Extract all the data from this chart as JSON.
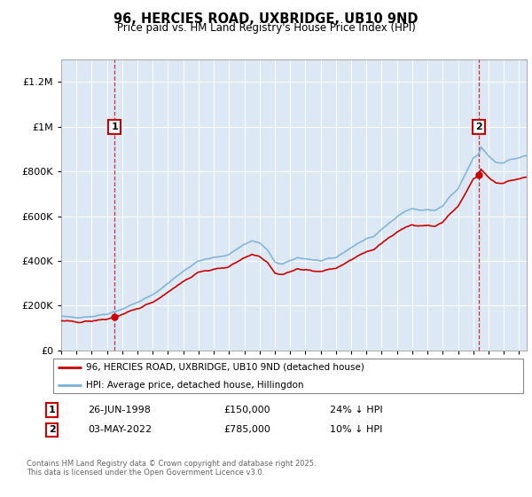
{
  "title": "96, HERCIES ROAD, UXBRIDGE, UB10 9ND",
  "subtitle": "Price paid vs. HM Land Registry's House Price Index (HPI)",
  "footer": "Contains HM Land Registry data © Crown copyright and database right 2025.\nThis data is licensed under the Open Government Licence v3.0.",
  "legend_line1": "96, HERCIES ROAD, UXBRIDGE, UB10 9ND (detached house)",
  "legend_line2": "HPI: Average price, detached house, Hillingdon",
  "annotation1_date": "26-JUN-1998",
  "annotation1_price": "£150,000",
  "annotation1_hpi": "24% ↓ HPI",
  "annotation2_date": "03-MAY-2022",
  "annotation2_price": "£785,000",
  "annotation2_hpi": "10% ↓ HPI",
  "ylim": [
    0,
    1300000
  ],
  "xlim_min": 1995.0,
  "xlim_max": 2025.5,
  "background_color": "#ffffff",
  "plot_bg": "#dce9f5",
  "grid_color": "#ffffff",
  "hpi_color": "#7bafd4",
  "price_color": "#cc0000",
  "vline_color": "#cc0000",
  "ann_box_color": "#cc0000",
  "sale1_x": 1998.49,
  "sale1_y": 150000,
  "sale2_x": 2022.37,
  "sale2_y": 785000,
  "ann1_y": 1000000,
  "ann2_y": 1000000
}
